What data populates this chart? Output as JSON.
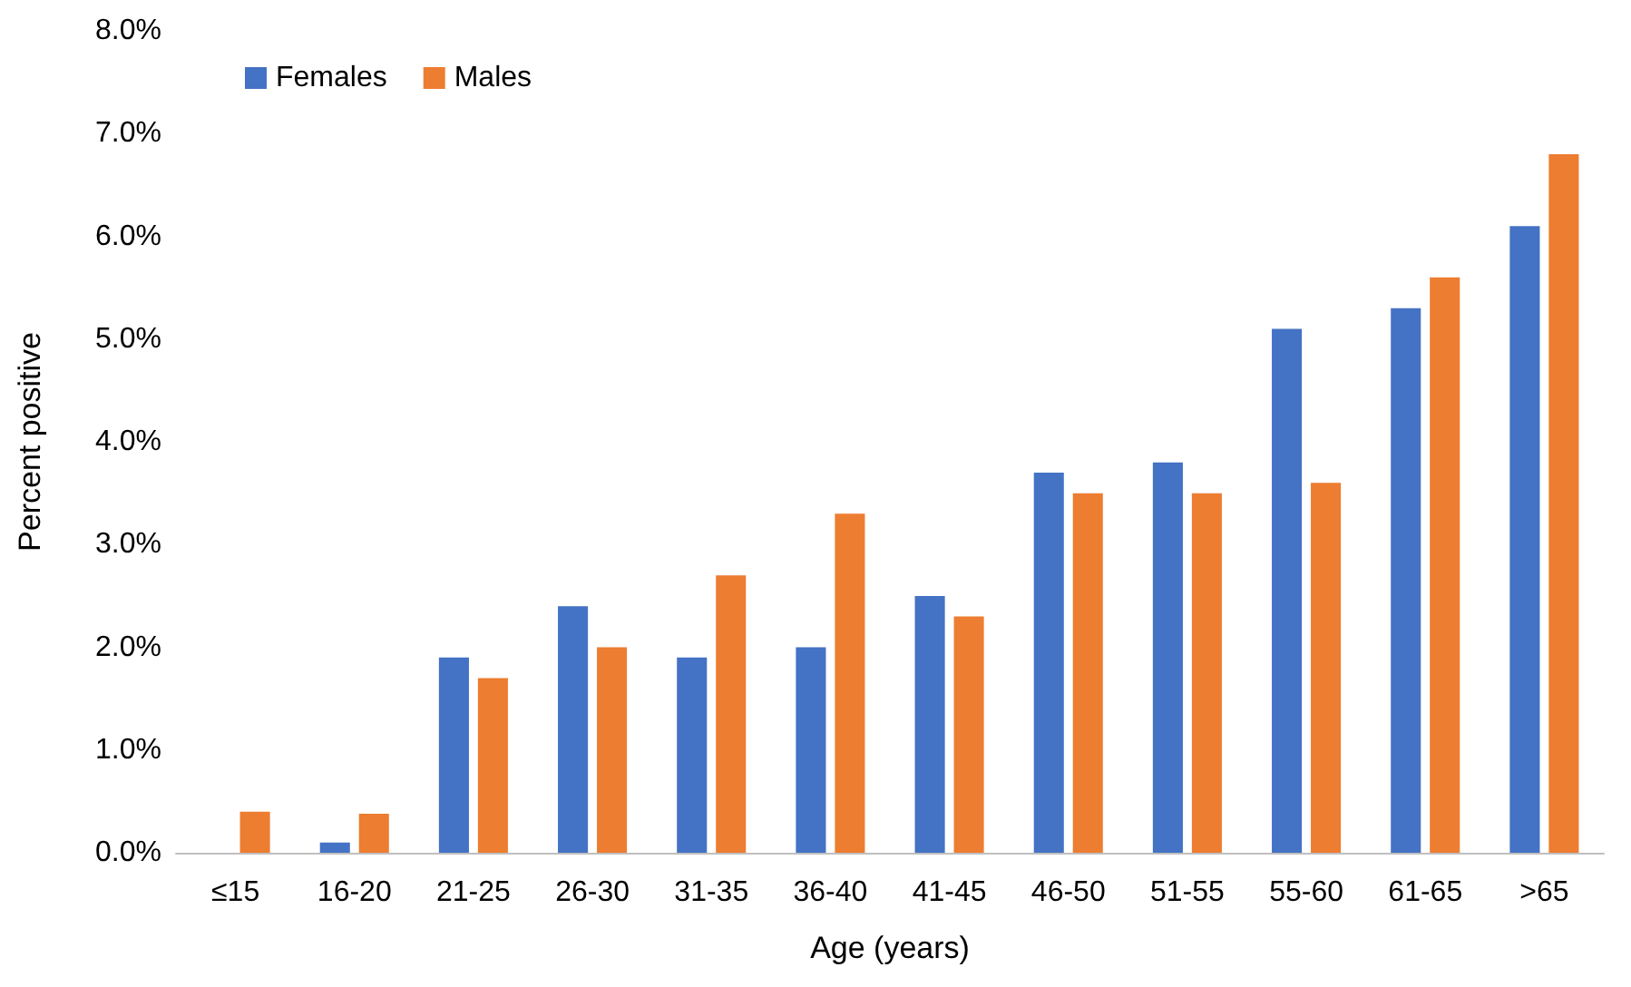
{
  "chart_data": {
    "type": "bar",
    "xlabel": "Age (years)",
    "ylabel": "Percent positive",
    "categories": [
      "≤15",
      "16-20",
      "21-25",
      "26-30",
      "31-35",
      "36-40",
      "41-45",
      "46-50",
      "51-55",
      "55-60",
      "61-65",
      ">65"
    ],
    "series": [
      {
        "name": "Females",
        "color": "#4472c4",
        "values": [
          0,
          0.1,
          1.9,
          2.4,
          1.9,
          2.0,
          2.5,
          3.7,
          3.8,
          5.1,
          5.3,
          6.1
        ]
      },
      {
        "name": "Males",
        "color": "#ed7d31",
        "values": [
          0.4,
          0.38,
          1.7,
          2.0,
          2.7,
          3.3,
          2.3,
          3.5,
          3.5,
          3.6,
          5.6,
          6.8
        ]
      }
    ],
    "ylim": [
      0,
      8
    ],
    "yticks": [
      {
        "value": 0,
        "label": "0.0%"
      },
      {
        "value": 1,
        "label": "1.0%"
      },
      {
        "value": 2,
        "label": "2.0%"
      },
      {
        "value": 3,
        "label": "3.0%"
      },
      {
        "value": 4,
        "label": "4.0%"
      },
      {
        "value": 5,
        "label": "5.0%"
      },
      {
        "value": 6,
        "label": "6.0%"
      },
      {
        "value": 7,
        "label": "7.0%"
      },
      {
        "value": 8,
        "label": "8.0%"
      }
    ],
    "grid": false,
    "legend": "top left"
  }
}
